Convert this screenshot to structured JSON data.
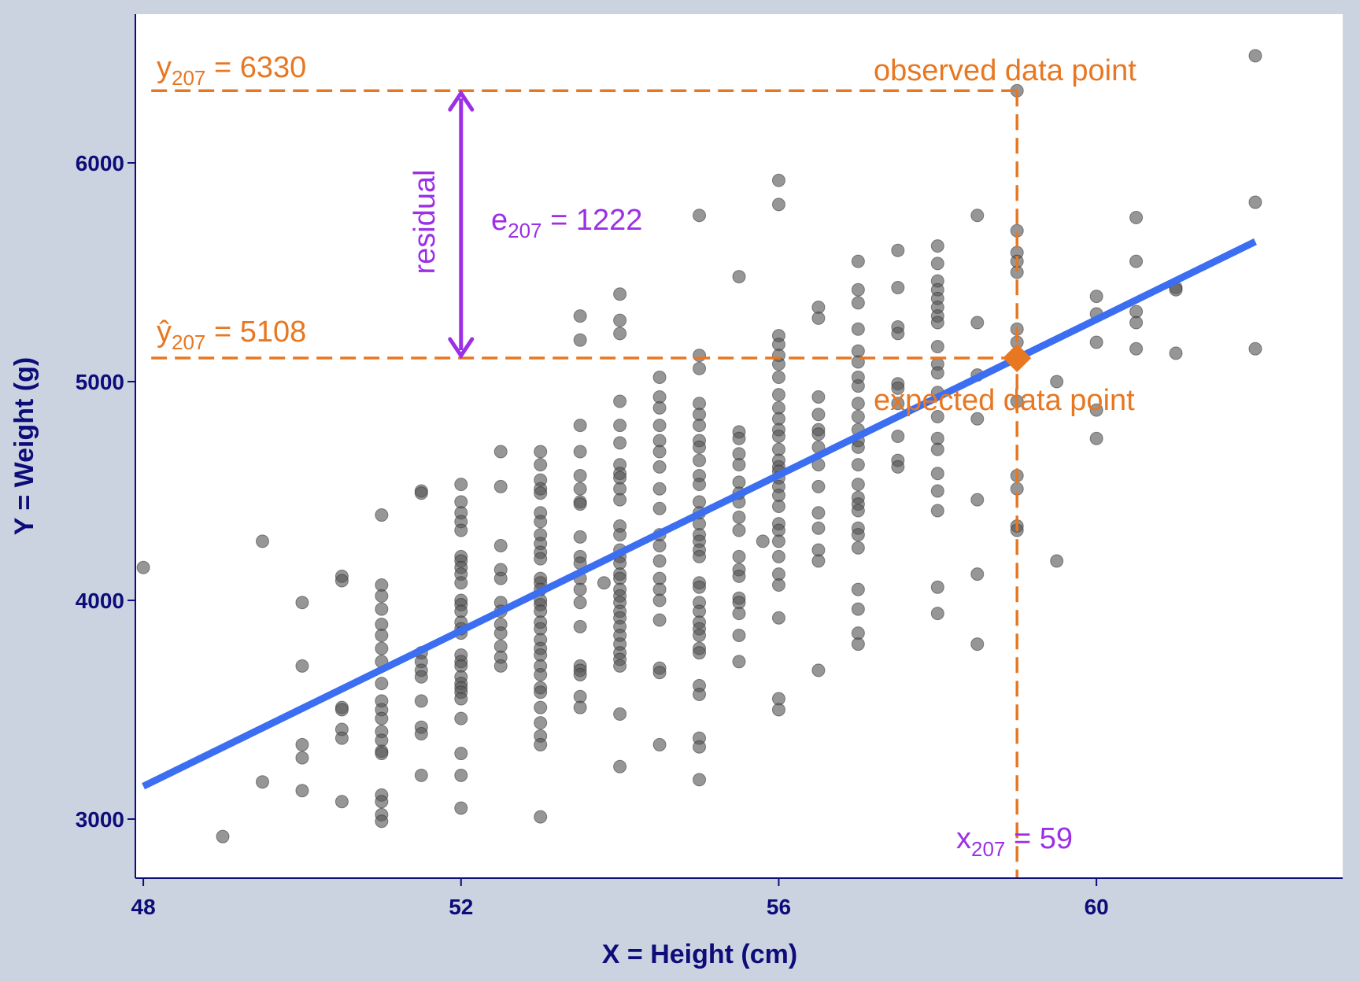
{
  "chart_data": {
    "type": "scatter",
    "xlabel": "X = Height (cm)",
    "ylabel": "Y = Weight (g)",
    "xlim": [
      47.9,
      63.1
    ],
    "ylim": [
      2730,
      6680
    ],
    "xticks": [
      48,
      52,
      56,
      60
    ],
    "yticks": [
      3000,
      4000,
      5000,
      6000
    ],
    "grid": false,
    "colors": {
      "points": "#555555",
      "fit": "#3b6ef0",
      "annotation": "#e87722",
      "residual": "#9b30e6",
      "axis": "#0d0d7a"
    },
    "regression_line": {
      "x": [
        48,
        62
      ],
      "y": [
        3150,
        5640
      ]
    },
    "observed": {
      "x": 59,
      "y": 6330
    },
    "expected": {
      "x": 59,
      "y": 5108
    },
    "labels": {
      "y_obs": {
        "sym": "y",
        "sub": "207",
        "eq": " = 6330"
      },
      "y_hat": {
        "sym": "ŷ",
        "sub": "207",
        "eq": " = 5108"
      },
      "x_obs": {
        "sym": "x",
        "sub": "207",
        "eq": " = 59"
      },
      "resid": {
        "sym": "e",
        "sub": "207",
        "eq": " = 1222"
      },
      "residual": "residual",
      "observed_point": "observed data point",
      "expected_point": "expected data point"
    },
    "points": [
      [
        48,
        4150
      ],
      [
        49,
        2920
      ],
      [
        49.5,
        4270
      ],
      [
        49.5,
        3170
      ],
      [
        50,
        3990
      ],
      [
        50,
        3700
      ],
      [
        50,
        3340
      ],
      [
        50,
        3280
      ],
      [
        50,
        3130
      ],
      [
        50.5,
        4110
      ],
      [
        50.5,
        4090
      ],
      [
        50.5,
        3510
      ],
      [
        50.5,
        3500
      ],
      [
        50.5,
        3410
      ],
      [
        50.5,
        3370
      ],
      [
        50.5,
        3080
      ],
      [
        51,
        4390
      ],
      [
        51,
        4070
      ],
      [
        51,
        4020
      ],
      [
        51,
        3960
      ],
      [
        51,
        3890
      ],
      [
        51,
        3840
      ],
      [
        51,
        3780
      ],
      [
        51,
        3720
      ],
      [
        51,
        3620
      ],
      [
        51,
        3540
      ],
      [
        51,
        3500
      ],
      [
        51,
        3460
      ],
      [
        51,
        3400
      ],
      [
        51,
        3360
      ],
      [
        51,
        3310
      ],
      [
        51,
        3300
      ],
      [
        51,
        3110
      ],
      [
        51,
        3080
      ],
      [
        51,
        3020
      ],
      [
        51,
        2990
      ],
      [
        51.5,
        4500
      ],
      [
        51.5,
        4490
      ],
      [
        51.5,
        3760
      ],
      [
        51.5,
        3720
      ],
      [
        51.5,
        3680
      ],
      [
        51.5,
        3650
      ],
      [
        51.5,
        3540
      ],
      [
        51.5,
        3420
      ],
      [
        51.5,
        3390
      ],
      [
        51.5,
        3200
      ],
      [
        52,
        4530
      ],
      [
        52,
        4450
      ],
      [
        52,
        4400
      ],
      [
        52,
        4360
      ],
      [
        52,
        4320
      ],
      [
        52,
        4200
      ],
      [
        52,
        4180
      ],
      [
        52,
        4150
      ],
      [
        52,
        4120
      ],
      [
        52,
        4080
      ],
      [
        52,
        4000
      ],
      [
        52,
        3980
      ],
      [
        52,
        3950
      ],
      [
        52,
        3900
      ],
      [
        52,
        3870
      ],
      [
        52,
        3850
      ],
      [
        52,
        3750
      ],
      [
        52,
        3720
      ],
      [
        52,
        3700
      ],
      [
        52,
        3650
      ],
      [
        52,
        3620
      ],
      [
        52,
        3600
      ],
      [
        52,
        3580
      ],
      [
        52,
        3550
      ],
      [
        52,
        3460
      ],
      [
        52,
        3300
      ],
      [
        52,
        3200
      ],
      [
        52,
        3050
      ],
      [
        52.5,
        4680
      ],
      [
        52.5,
        4520
      ],
      [
        52.5,
        4250
      ],
      [
        52.5,
        4140
      ],
      [
        52.5,
        4100
      ],
      [
        52.5,
        3990
      ],
      [
        52.5,
        3950
      ],
      [
        52.5,
        3890
      ],
      [
        52.5,
        3850
      ],
      [
        52.5,
        3790
      ],
      [
        52.5,
        3740
      ],
      [
        52.5,
        3700
      ],
      [
        53,
        4680
      ],
      [
        53,
        4620
      ],
      [
        53,
        4550
      ],
      [
        53,
        4510
      ],
      [
        53,
        4490
      ],
      [
        53,
        4400
      ],
      [
        53,
        4360
      ],
      [
        53,
        4300
      ],
      [
        53,
        4260
      ],
      [
        53,
        4220
      ],
      [
        53,
        4190
      ],
      [
        53,
        4100
      ],
      [
        53,
        4080
      ],
      [
        53,
        4050
      ],
      [
        53,
        4000
      ],
      [
        53,
        3980
      ],
      [
        53,
        3950
      ],
      [
        53,
        3900
      ],
      [
        53,
        3870
      ],
      [
        53,
        3820
      ],
      [
        53,
        3780
      ],
      [
        53,
        3750
      ],
      [
        53,
        3700
      ],
      [
        53,
        3660
      ],
      [
        53,
        3600
      ],
      [
        53,
        3580
      ],
      [
        53,
        3510
      ],
      [
        53,
        3440
      ],
      [
        53,
        3380
      ],
      [
        53,
        3340
      ],
      [
        53,
        3010
      ],
      [
        53.5,
        5300
      ],
      [
        53.5,
        5190
      ],
      [
        53.5,
        4800
      ],
      [
        53.5,
        4680
      ],
      [
        53.5,
        4570
      ],
      [
        53.5,
        4510
      ],
      [
        53.5,
        4450
      ],
      [
        53.5,
        4440
      ],
      [
        53.5,
        4290
      ],
      [
        53.5,
        4200
      ],
      [
        53.5,
        4170
      ],
      [
        53.5,
        4100
      ],
      [
        53.5,
        4050
      ],
      [
        53.5,
        3990
      ],
      [
        53.5,
        3880
      ],
      [
        53.5,
        3700
      ],
      [
        53.5,
        3680
      ],
      [
        53.5,
        3660
      ],
      [
        53.5,
        3560
      ],
      [
        53.5,
        3510
      ],
      [
        53.8,
        4080
      ],
      [
        54,
        5400
      ],
      [
        54,
        5280
      ],
      [
        54,
        5220
      ],
      [
        54,
        4910
      ],
      [
        54,
        4800
      ],
      [
        54,
        4720
      ],
      [
        54,
        4620
      ],
      [
        54,
        4580
      ],
      [
        54,
        4560
      ],
      [
        54,
        4510
      ],
      [
        54,
        4460
      ],
      [
        54,
        4340
      ],
      [
        54,
        4300
      ],
      [
        54,
        4230
      ],
      [
        54,
        4200
      ],
      [
        54,
        4170
      ],
      [
        54,
        4120
      ],
      [
        54,
        4100
      ],
      [
        54,
        4050
      ],
      [
        54,
        4020
      ],
      [
        54,
        3990
      ],
      [
        54,
        3950
      ],
      [
        54,
        3920
      ],
      [
        54,
        3880
      ],
      [
        54,
        3840
      ],
      [
        54,
        3800
      ],
      [
        54,
        3760
      ],
      [
        54,
        3730
      ],
      [
        54,
        3700
      ],
      [
        54,
        3480
      ],
      [
        54,
        3240
      ],
      [
        54.5,
        5020
      ],
      [
        54.5,
        4930
      ],
      [
        54.5,
        4880
      ],
      [
        54.5,
        4800
      ],
      [
        54.5,
        4730
      ],
      [
        54.5,
        4680
      ],
      [
        54.5,
        4610
      ],
      [
        54.5,
        4510
      ],
      [
        54.5,
        4420
      ],
      [
        54.5,
        4300
      ],
      [
        54.5,
        4250
      ],
      [
        54.5,
        4180
      ],
      [
        54.5,
        4100
      ],
      [
        54.5,
        4050
      ],
      [
        54.5,
        4000
      ],
      [
        54.5,
        3910
      ],
      [
        54.5,
        3690
      ],
      [
        54.5,
        3670
      ],
      [
        54.5,
        3340
      ],
      [
        55,
        5760
      ],
      [
        55,
        5120
      ],
      [
        55,
        5060
      ],
      [
        55,
        4900
      ],
      [
        55,
        4850
      ],
      [
        55,
        4800
      ],
      [
        55,
        4730
      ],
      [
        55,
        4700
      ],
      [
        55,
        4640
      ],
      [
        55,
        4570
      ],
      [
        55,
        4530
      ],
      [
        55,
        4450
      ],
      [
        55,
        4400
      ],
      [
        55,
        4350
      ],
      [
        55,
        4300
      ],
      [
        55,
        4270
      ],
      [
        55,
        4230
      ],
      [
        55,
        4200
      ],
      [
        55,
        4080
      ],
      [
        55,
        4060
      ],
      [
        55,
        3990
      ],
      [
        55,
        3950
      ],
      [
        55,
        3900
      ],
      [
        55,
        3870
      ],
      [
        55,
        3840
      ],
      [
        55,
        3780
      ],
      [
        55,
        3760
      ],
      [
        55,
        3610
      ],
      [
        55,
        3570
      ],
      [
        55,
        3370
      ],
      [
        55,
        3330
      ],
      [
        55,
        3180
      ],
      [
        55.5,
        5480
      ],
      [
        55.5,
        4770
      ],
      [
        55.5,
        4740
      ],
      [
        55.5,
        4670
      ],
      [
        55.5,
        4620
      ],
      [
        55.5,
        4540
      ],
      [
        55.5,
        4490
      ],
      [
        55.5,
        4450
      ],
      [
        55.5,
        4380
      ],
      [
        55.5,
        4320
      ],
      [
        55.5,
        4200
      ],
      [
        55.5,
        4140
      ],
      [
        55.5,
        4110
      ],
      [
        55.5,
        4010
      ],
      [
        55.5,
        3990
      ],
      [
        55.5,
        3940
      ],
      [
        55.5,
        3840
      ],
      [
        55.5,
        3720
      ],
      [
        55.8,
        4270
      ],
      [
        56,
        5920
      ],
      [
        56,
        5810
      ],
      [
        56,
        5210
      ],
      [
        56,
        5170
      ],
      [
        56,
        5120
      ],
      [
        56,
        5080
      ],
      [
        56,
        5020
      ],
      [
        56,
        4940
      ],
      [
        56,
        4880
      ],
      [
        56,
        4830
      ],
      [
        56,
        4780
      ],
      [
        56,
        4750
      ],
      [
        56,
        4690
      ],
      [
        56,
        4640
      ],
      [
        56,
        4610
      ],
      [
        56,
        4590
      ],
      [
        56,
        4560
      ],
      [
        56,
        4520
      ],
      [
        56,
        4480
      ],
      [
        56,
        4430
      ],
      [
        56,
        4350
      ],
      [
        56,
        4320
      ],
      [
        56,
        4270
      ],
      [
        56,
        4200
      ],
      [
        56,
        4120
      ],
      [
        56,
        4070
      ],
      [
        56,
        3920
      ],
      [
        56,
        3550
      ],
      [
        56,
        3500
      ],
      [
        56.5,
        5340
      ],
      [
        56.5,
        5290
      ],
      [
        56.5,
        4930
      ],
      [
        56.5,
        4850
      ],
      [
        56.5,
        4780
      ],
      [
        56.5,
        4760
      ],
      [
        56.5,
        4700
      ],
      [
        56.5,
        4620
      ],
      [
        56.5,
        4520
      ],
      [
        56.5,
        4400
      ],
      [
        56.5,
        4330
      ],
      [
        56.5,
        4230
      ],
      [
        56.5,
        4180
      ],
      [
        56.5,
        3680
      ],
      [
        57,
        5550
      ],
      [
        57,
        5420
      ],
      [
        57,
        5360
      ],
      [
        57,
        5240
      ],
      [
        57,
        5140
      ],
      [
        57,
        5090
      ],
      [
        57,
        5020
      ],
      [
        57,
        4980
      ],
      [
        57,
        4900
      ],
      [
        57,
        4840
      ],
      [
        57,
        4780
      ],
      [
        57,
        4730
      ],
      [
        57,
        4700
      ],
      [
        57,
        4620
      ],
      [
        57,
        4530
      ],
      [
        57,
        4470
      ],
      [
        57,
        4440
      ],
      [
        57,
        4410
      ],
      [
        57,
        4330
      ],
      [
        57,
        4300
      ],
      [
        57,
        4240
      ],
      [
        57,
        4050
      ],
      [
        57,
        3960
      ],
      [
        57,
        3850
      ],
      [
        57,
        3800
      ],
      [
        57.5,
        5600
      ],
      [
        57.5,
        5430
      ],
      [
        57.5,
        5250
      ],
      [
        57.5,
        5220
      ],
      [
        57.5,
        4990
      ],
      [
        57.5,
        4970
      ],
      [
        57.5,
        4900
      ],
      [
        57.5,
        4750
      ],
      [
        57.5,
        4640
      ],
      [
        57.5,
        4610
      ],
      [
        58,
        5620
      ],
      [
        58,
        5540
      ],
      [
        58,
        5460
      ],
      [
        58,
        5420
      ],
      [
        58,
        5380
      ],
      [
        58,
        5340
      ],
      [
        58,
        5300
      ],
      [
        58,
        5270
      ],
      [
        58,
        5160
      ],
      [
        58,
        5080
      ],
      [
        58,
        5040
      ],
      [
        58,
        4950
      ],
      [
        58,
        4840
      ],
      [
        58,
        4740
      ],
      [
        58,
        4690
      ],
      [
        58,
        4580
      ],
      [
        58,
        4500
      ],
      [
        58,
        4410
      ],
      [
        58,
        4060
      ],
      [
        58,
        3940
      ],
      [
        58.5,
        5760
      ],
      [
        58.5,
        5270
      ],
      [
        58.5,
        5030
      ],
      [
        58.5,
        4830
      ],
      [
        58.5,
        4460
      ],
      [
        58.5,
        4120
      ],
      [
        58.5,
        3800
      ],
      [
        59,
        6330
      ],
      [
        59,
        5690
      ],
      [
        59,
        5590
      ],
      [
        59,
        5550
      ],
      [
        59,
        5500
      ],
      [
        59,
        5240
      ],
      [
        59,
        5180
      ],
      [
        59,
        4910
      ],
      [
        59,
        4570
      ],
      [
        59,
        4510
      ],
      [
        59,
        4340
      ],
      [
        59,
        4320
      ],
      [
        59.5,
        5000
      ],
      [
        59.5,
        4180
      ],
      [
        60,
        5390
      ],
      [
        60,
        5310
      ],
      [
        60,
        5180
      ],
      [
        60,
        4870
      ],
      [
        60,
        4740
      ],
      [
        60.5,
        5750
      ],
      [
        60.5,
        5550
      ],
      [
        60.5,
        5320
      ],
      [
        60.5,
        5270
      ],
      [
        60.5,
        5150
      ],
      [
        61,
        5430
      ],
      [
        61,
        5420
      ],
      [
        61,
        5130
      ],
      [
        62,
        6490
      ],
      [
        62,
        5820
      ],
      [
        62,
        5150
      ]
    ]
  }
}
